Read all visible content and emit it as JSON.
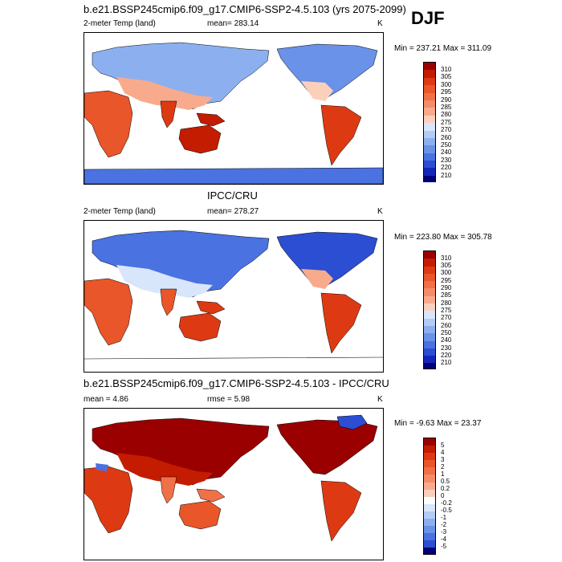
{
  "season": "DJF",
  "panels": [
    {
      "title": "b.e21.BSSP245cmip6.f09_g17.CMIP6-SSP2-4.5.103 (yrs 2075-2099)",
      "left_label": "2-meter Temp (land)",
      "stat_label": "mean=",
      "stat_value": "283.14",
      "units": "K",
      "minmax": "Min = 237.21 Max = 311.09"
    },
    {
      "title": "IPCC/CRU",
      "left_label": "2-meter Temp (land)",
      "stat_label": "mean=",
      "stat_value": "278.27",
      "units": "K",
      "minmax": "Min = 223.80 Max = 305.78"
    },
    {
      "title": "b.e21.BSSP245cmip6.f09_g17.CMIP6-SSP2-4.5.103 - IPCC/CRU",
      "left_label": "mean =   4.86",
      "stat_label": "rmse =",
      "stat_value": "5.98",
      "units": "K",
      "minmax": "Min =  -9.63 Max =  23.37"
    }
  ],
  "chart_data": [
    {
      "type": "heatmap",
      "title": "b.e21.BSSP245cmip6.f09_g17.CMIP6-SSP2-4.5.103 (yrs 2075-2099)",
      "variable": "2-meter Temp (land)",
      "units": "K",
      "mean": 283.14,
      "min": 237.21,
      "max": 311.09,
      "colorbar_levels": [
        "310",
        "305",
        "300",
        "295",
        "290",
        "285",
        "280",
        "275",
        "270",
        "260",
        "250",
        "240",
        "230",
        "220",
        "210"
      ],
      "colorbar_colors": [
        "#9a0000",
        "#c41c00",
        "#dd3a14",
        "#e9562a",
        "#f07048",
        "#f58c68",
        "#f8ab8c",
        "#fbd0bb",
        "#d8e6fb",
        "#b4ccf5",
        "#8cb0ef",
        "#6a92e8",
        "#4a72e0",
        "#2c4ed2",
        "#1426b8",
        "#00007a"
      ]
    },
    {
      "type": "heatmap",
      "title": "IPCC/CRU",
      "variable": "2-meter Temp (land)",
      "units": "K",
      "mean": 278.27,
      "min": 223.8,
      "max": 305.78,
      "colorbar_levels": [
        "310",
        "305",
        "300",
        "295",
        "290",
        "285",
        "280",
        "275",
        "270",
        "260",
        "250",
        "240",
        "230",
        "220",
        "210"
      ],
      "colorbar_colors": [
        "#9a0000",
        "#c41c00",
        "#dd3a14",
        "#e9562a",
        "#f07048",
        "#f58c68",
        "#f8ab8c",
        "#fbd0bb",
        "#d8e6fb",
        "#b4ccf5",
        "#8cb0ef",
        "#6a92e8",
        "#4a72e0",
        "#2c4ed2",
        "#1426b8",
        "#00007a"
      ]
    },
    {
      "type": "heatmap",
      "title": "b.e21.BSSP245cmip6.f09_g17.CMIP6-SSP2-4.5.103 - IPCC/CRU",
      "units": "K",
      "mean": 4.86,
      "rmse": 5.98,
      "min": -9.63,
      "max": 23.37,
      "colorbar_levels": [
        "5",
        "4",
        "3",
        "2",
        "1",
        "0.5",
        "0.2",
        "0",
        "-0.2",
        "-0.5",
        "-1",
        "-2",
        "-3",
        "-4",
        "-5"
      ],
      "colorbar_colors": [
        "#9a0000",
        "#c41c00",
        "#dd3a14",
        "#e9562a",
        "#f07048",
        "#f58c68",
        "#f8ab8c",
        "#fbd0bb",
        "#ffffff",
        "#d8e6fb",
        "#b4ccf5",
        "#8cb0ef",
        "#6a92e8",
        "#4a72e0",
        "#2c4ed2",
        "#00007a"
      ]
    }
  ]
}
